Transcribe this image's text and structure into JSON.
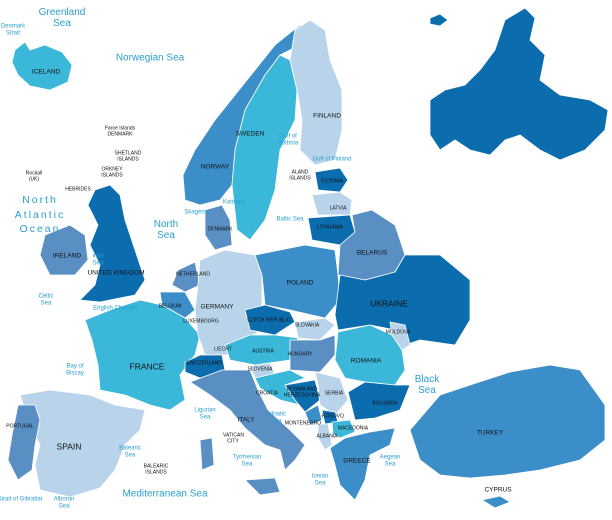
{
  "colors": {
    "dark": "#0b6cae",
    "mid": "#3c8ec8",
    "light": "#b9d4ea",
    "cyan": "#3bb7d9",
    "steel": "#5a8fc4",
    "sea_label": "#2a9fd0"
  },
  "seas": [
    "Greenland Sea",
    "Denmark Strait",
    "Norwegian Sea",
    "North Atlantic Ocean",
    "North Sea",
    "Celtic Sea",
    "English Channel",
    "Bay of Biscay",
    "Baltic Sea",
    "Gulf of Bothnia",
    "Gulf of Finland",
    "Irish Sea",
    "Skagerrak",
    "Kattegat",
    "Ligurian Sea",
    "Adriatic Sea",
    "Tyrrhenian Sea",
    "Ionian Sea",
    "Aegean Sea",
    "Black Sea",
    "Balearic Sea",
    "Mediterranean Sea",
    "Alboran Sea",
    "Strait of Gibraltar"
  ],
  "countries": [
    "ICELAND",
    "NORWAY",
    "SWEDEN",
    "FINLAND",
    "ESTONIA",
    "LATVIA",
    "LITHUANIA",
    "BELARUS",
    "DENMARK",
    "IRELAND",
    "UNITED KINGDOM",
    "NETHERLAND",
    "BELGIUM",
    "LUXEMBOURG",
    "GERMANY",
    "POLAND",
    "CZECH REPUBLIC",
    "SLOVAKIA",
    "UKRAINE",
    "MOLDOVA",
    "LIECHT",
    "AUSTRIA",
    "SWITZERLAND",
    "HUNGARY",
    "SLOVENIA",
    "ROMANIA",
    "CROATIA",
    "BOSNIA AND HERZEGOVINA",
    "SERBIA",
    "BULGARIA",
    "MONTENEGRO",
    "KOSOVO",
    "MACEDONIA",
    "ALBANIA",
    "ITALY",
    "VATICAN CITY",
    "GREECE",
    "FRANCE",
    "SPAIN",
    "PORTUGAL",
    "TURKEY",
    "CYPRUS"
  ],
  "islands": [
    "Faroe Islands DENMARK",
    "SHETLAND ISLANDS",
    "ORKNEY ISLANDS",
    "Rockall (UK)",
    "HEBRIDES",
    "ALAND ISLANDS",
    "BALEARIC ISLANDS"
  ]
}
